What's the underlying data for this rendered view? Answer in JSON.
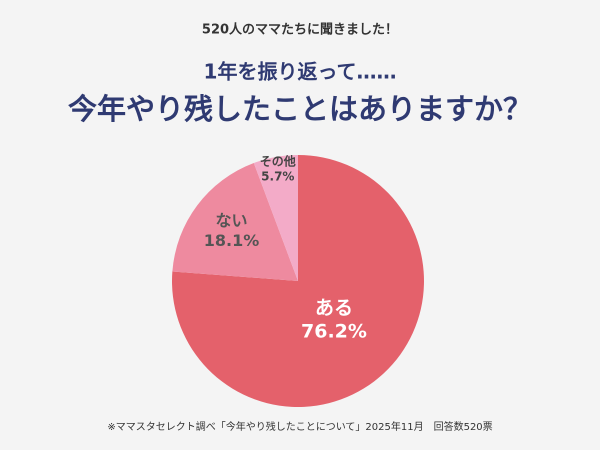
{
  "chart_data": {
    "type": "pie",
    "kicker": "520人のママたちに聞きました！",
    "subtitle": "1年を振り返って……",
    "title": "今年やり残したことはありますか？",
    "categories": [
      "ある",
      "ない",
      "その他"
    ],
    "values": [
      76.2,
      18.1,
      5.7
    ],
    "value_labels": [
      "76.2%",
      "18.1%",
      "5.7%"
    ],
    "colors": [
      "#e4616b",
      "#ee8a9f",
      "#f3abc8"
    ],
    "label_colors": [
      "#ffffff",
      "#555555",
      "#444444"
    ],
    "note": "※ママスタセレクト調べ「今年やり残したことについて」2025年11月　回答数520票"
  }
}
